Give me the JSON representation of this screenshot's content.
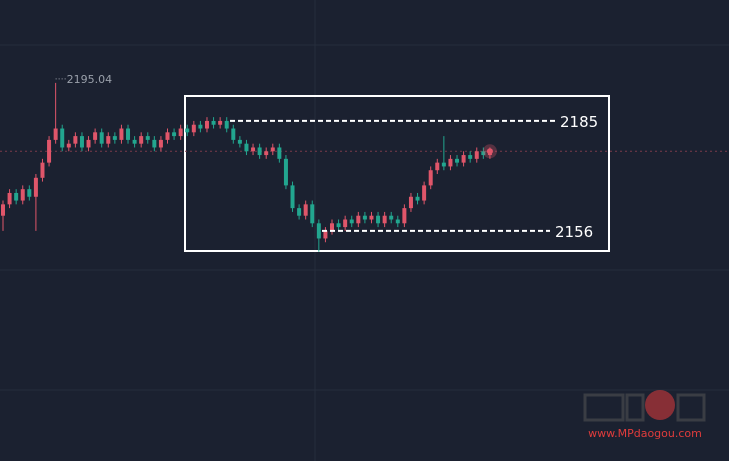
{
  "chart_data": {
    "type": "candlestick",
    "open": [
      2160,
      2163,
      2166,
      2164,
      2167,
      2165,
      2170,
      2174,
      2180,
      2183,
      2178,
      2179,
      2181,
      2178,
      2180,
      2182,
      2179,
      2181,
      2180,
      2183,
      2180,
      2179,
      2181,
      2180,
      2178,
      2180,
      2182,
      2181,
      2183,
      2182,
      2184,
      2183,
      2185,
      2184,
      2185,
      2183,
      2180,
      2179,
      2177,
      2178,
      2176,
      2177,
      2178,
      2175,
      2168,
      2162,
      2160,
      2163,
      2158,
      2154,
      2156,
      2158,
      2157,
      2159,
      2158,
      2160,
      2159,
      2160,
      2158,
      2160,
      2159,
      2158,
      2162,
      2165,
      2164,
      2168,
      2172,
      2174,
      2173,
      2175,
      2174,
      2176,
      2175,
      2177,
      2176
    ],
    "high": [
      2164,
      2167,
      2167,
      2168,
      2168,
      2171,
      2175,
      2181,
      2195.04,
      2184,
      2180,
      2182,
      2182,
      2181,
      2183,
      2183,
      2182,
      2182,
      2184,
      2184,
      2181,
      2182,
      2182,
      2181,
      2181,
      2183,
      2183,
      2184,
      2184,
      2185,
      2185,
      2186,
      2186,
      2186,
      2186,
      2184,
      2181,
      2180,
      2179,
      2179,
      2178,
      2179,
      2179,
      2176,
      2169,
      2163,
      2164,
      2164,
      2159,
      2157,
      2159,
      2159,
      2160,
      2160,
      2161,
      2161,
      2161,
      2161,
      2161,
      2161,
      2160,
      2163,
      2166,
      2166,
      2169,
      2173,
      2175,
      2181,
      2176,
      2176,
      2177,
      2177,
      2178,
      2178,
      2178
    ],
    "low": [
      2156,
      2162,
      2163,
      2163,
      2164,
      2156,
      2169,
      2173,
      2179,
      2177,
      2177,
      2178,
      2177,
      2177,
      2179,
      2178,
      2178,
      2179,
      2179,
      2179,
      2178,
      2178,
      2179,
      2177,
      2177,
      2179,
      2180,
      2180,
      2181,
      2181,
      2182,
      2182,
      2183,
      2183,
      2182,
      2179,
      2178,
      2176,
      2176,
      2175,
      2175,
      2176,
      2174,
      2167,
      2161,
      2159,
      2159,
      2157,
      2150.5,
      2153,
      2155,
      2156,
      2156,
      2157,
      2157,
      2158,
      2158,
      2157,
      2157,
      2158,
      2157,
      2157,
      2161,
      2163,
      2163,
      2167,
      2171,
      2172,
      2172,
      2173,
      2173,
      2174,
      2174,
      2175,
      2175
    ],
    "close": [
      2163,
      2166,
      2164,
      2167,
      2165,
      2170,
      2174,
      2180,
      2183,
      2178,
      2179,
      2181,
      2178,
      2180,
      2182,
      2179,
      2181,
      2180,
      2183,
      2180,
      2179,
      2181,
      2180,
      2178,
      2180,
      2182,
      2181,
      2183,
      2182,
      2184,
      2183,
      2185,
      2184,
      2185,
      2183,
      2180,
      2179,
      2177,
      2178,
      2176,
      2177,
      2178,
      2175,
      2168,
      2162,
      2160,
      2163,
      2158,
      2154,
      2156,
      2158,
      2157,
      2159,
      2158,
      2160,
      2159,
      2160,
      2158,
      2160,
      2159,
      2158,
      2162,
      2165,
      2164,
      2168,
      2172,
      2174,
      2173,
      2175,
      2174,
      2176,
      2175,
      2177,
      2176,
      2177
    ],
    "ylim": [
      2095.3,
      2216.9
    ],
    "up_color": "#e0566a",
    "down_color": "#22a68f",
    "levels": [
      2185,
      2156
    ],
    "watermark": "www.MPdaogou.com"
  }
}
